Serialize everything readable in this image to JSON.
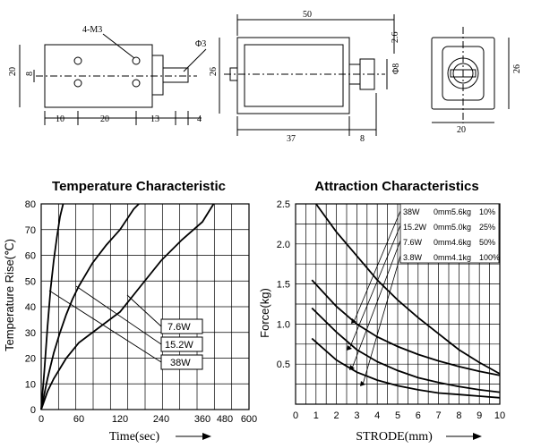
{
  "drawing": {
    "side_view": {
      "screw_label": "4-M3",
      "shaft_dia": "Φ3",
      "height": "20",
      "inner": "8",
      "dims_bottom": [
        "10",
        "20",
        "13",
        "4"
      ]
    },
    "front_view": {
      "length": "50",
      "height": "26",
      "stroke": "2.6",
      "plunger_dia": "Φ8",
      "body_length": "37",
      "plunger_length": "8"
    },
    "end_view": {
      "height": "26",
      "width": "20"
    }
  },
  "chart_data": [
    {
      "type": "line",
      "title": "Temperature Characteristic",
      "xlabel": "Time(sec)",
      "ylabel": "Temperature Rise(℃)",
      "x_ticks": [
        "0",
        "60",
        "120",
        "240",
        "360",
        "480",
        "600"
      ],
      "y_ticks": [
        "0",
        "10",
        "20",
        "30",
        "40",
        "50",
        "60",
        "70",
        "80"
      ],
      "ylim": [
        0,
        80
      ],
      "grid": true,
      "series": [
        {
          "name": "38W",
          "points": [
            [
              0,
              0
            ],
            [
              5,
              15
            ],
            [
              10,
              32
            ],
            [
              15,
              47
            ],
            [
              20,
              58
            ],
            [
              25,
              67
            ],
            [
              30,
              75
            ],
            [
              35,
              80
            ]
          ]
        },
        {
          "name": "15.2W",
          "points": [
            [
              0,
              0
            ],
            [
              10,
              12
            ],
            [
              20,
              22
            ],
            [
              30,
              30
            ],
            [
              40,
              37
            ],
            [
              50,
              43
            ],
            [
              60,
              48
            ],
            [
              80,
              57
            ],
            [
              100,
              64
            ],
            [
              120,
              70
            ],
            [
              160,
              78
            ],
            [
              175,
              80
            ]
          ]
        },
        {
          "name": "7.6W",
          "points": [
            [
              0,
              0
            ],
            [
              10,
              7
            ],
            [
              20,
              12
            ],
            [
              30,
              16
            ],
            [
              40,
              20
            ],
            [
              60,
              26
            ],
            [
              90,
              32
            ],
            [
              120,
              38
            ],
            [
              180,
              48
            ],
            [
              240,
              58
            ],
            [
              300,
              66
            ],
            [
              360,
              73
            ],
            [
              420,
              80
            ]
          ]
        }
      ]
    },
    {
      "type": "line",
      "title": "Attraction Characteristics",
      "xlabel": "STRODE(mm)",
      "ylabel": "Force(kg)",
      "x_ticks": [
        "0",
        "1",
        "2",
        "3",
        "4",
        "5",
        "6",
        "7",
        "8",
        "9",
        "10"
      ],
      "y_ticks": [
        "0.5",
        "1.0",
        "1.5",
        "2.0",
        "2.5"
      ],
      "xlim": [
        0,
        10
      ],
      "ylim": [
        0,
        2.5
      ],
      "grid": true,
      "legend": [
        {
          "power": "38W",
          "stroke": "0mm",
          "force": "5.6kg",
          "duty": "10%"
        },
        {
          "power": "15.2W",
          "stroke": "0mm",
          "force": "5.0kg",
          "duty": "25%"
        },
        {
          "power": "7.6W",
          "stroke": "0mm",
          "force": "4.6kg",
          "duty": "50%"
        },
        {
          "power": "3.8W",
          "stroke": "0mm",
          "force": "4.1kg",
          "duty": "100%"
        }
      ],
      "series": [
        {
          "name": "38W",
          "points": [
            [
              1,
              2.5
            ],
            [
              2,
              2.15
            ],
            [
              3,
              1.85
            ],
            [
              4,
              1.55
            ],
            [
              5,
              1.3
            ],
            [
              6,
              1.08
            ],
            [
              7,
              0.88
            ],
            [
              8,
              0.68
            ],
            [
              9,
              0.52
            ],
            [
              10,
              0.38
            ]
          ]
        },
        {
          "name": "15.2W",
          "points": [
            [
              0.8,
              1.55
            ],
            [
              2,
              1.22
            ],
            [
              3,
              1.0
            ],
            [
              4,
              0.84
            ],
            [
              5,
              0.72
            ],
            [
              6,
              0.62
            ],
            [
              7,
              0.54
            ],
            [
              8,
              0.47
            ],
            [
              9,
              0.41
            ],
            [
              10,
              0.36
            ]
          ]
        },
        {
          "name": "7.6W",
          "points": [
            [
              0.8,
              1.2
            ],
            [
              2,
              0.9
            ],
            [
              3,
              0.68
            ],
            [
              4,
              0.53
            ],
            [
              5,
              0.42
            ],
            [
              6,
              0.33
            ],
            [
              7,
              0.27
            ],
            [
              8,
              0.22
            ],
            [
              9,
              0.18
            ],
            [
              10,
              0.15
            ]
          ]
        },
        {
          "name": "3.8W",
          "points": [
            [
              0.8,
              0.82
            ],
            [
              2,
              0.55
            ],
            [
              3,
              0.4
            ],
            [
              4,
              0.3
            ],
            [
              5,
              0.23
            ],
            [
              6,
              0.18
            ],
            [
              7,
              0.14
            ],
            [
              8,
              0.12
            ],
            [
              9,
              0.1
            ],
            [
              10,
              0.08
            ]
          ]
        }
      ]
    }
  ]
}
